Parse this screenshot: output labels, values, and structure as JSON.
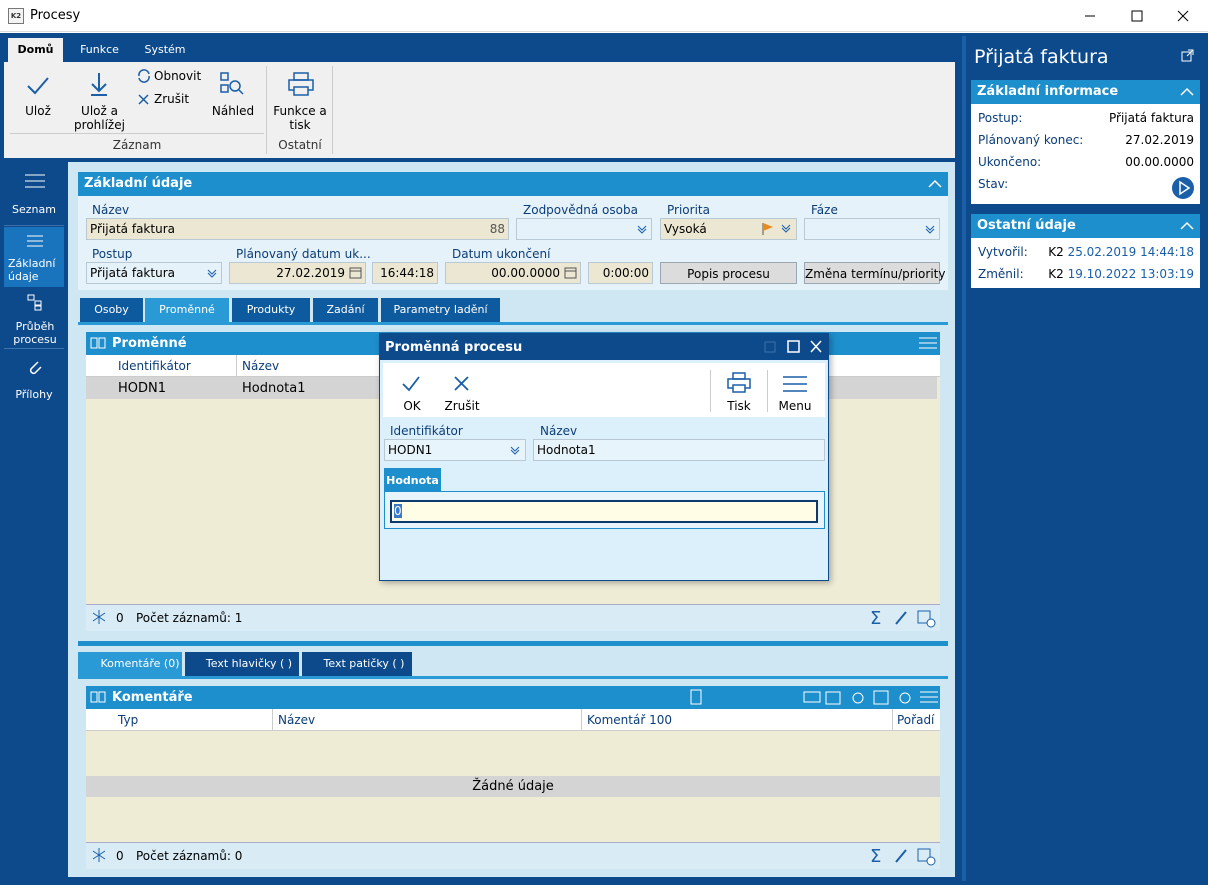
{
  "window": {
    "title": "Procesy",
    "icon": "K2"
  },
  "ribbon": {
    "tabs": [
      "Domů",
      "Funkce",
      "Systém"
    ],
    "save": "Ulož",
    "save_browse": "Ulož a prohlížej",
    "refresh": "Obnovit",
    "cancel": "Zrušit",
    "preview": "Náhled",
    "functions": "Funkce a tisk",
    "groups": [
      "Záznam",
      "Ostatní"
    ]
  },
  "sidebar": [
    "Seznam",
    "Základní údaje",
    "Průběh procesu",
    "Přílohy"
  ],
  "basic": {
    "title": "Základní údaje",
    "name_label": "Název",
    "name_value": "Přijatá faktura",
    "name_number": 88,
    "person_label": "Zodpovědná osoba",
    "priority_label": "Priorita",
    "priority_value": "Vysoká",
    "phase_label": "Fáze",
    "procedure_label": "Postup",
    "procedure_value": "Přijatá faktura",
    "planned_label": "Plánovaný datum uk...",
    "planned_date": "27.02.2019",
    "planned_time": "16:44:18",
    "end_label": "Datum ukončení",
    "end_date": "00.00.0000",
    "end_time": "0:00:00",
    "buttons": [
      "Popis procesu",
      "Změna termínu/priority"
    ]
  },
  "tabs": [
    "Osoby",
    "Proměnné",
    "Produkty",
    "Zadání",
    "Parametry ladění"
  ],
  "variables": {
    "title": "Proměnné",
    "columns": [
      "Identifikátor",
      "Název"
    ],
    "rows": [
      [
        "HODN1",
        "Hodnota1"
      ]
    ],
    "footer_count": 0,
    "footer_text": "Počet záznamů: 1"
  },
  "dialog": {
    "title": "Proměnná procesu",
    "buttons": [
      "OK",
      "Zrušit",
      "Tisk",
      "Menu"
    ],
    "identifier_label": "Identifikátor",
    "identifier_value": "HODN1",
    "name_label": "Název",
    "name_value": "Hodnota1",
    "tab": "Hodnota",
    "value": 0
  },
  "bottom_tabs": [
    "Komentáře (0)",
    "Text hlavičky ( )",
    "Text patičky ( )"
  ],
  "comments": {
    "title": "Komentáře",
    "columns": [
      "Typ",
      "Název",
      "Komentář 100",
      "Pořadí"
    ],
    "empty": "Žádné údaje",
    "footer_count": 0,
    "footer_text": "Počet záznamů: 0"
  },
  "right_panel": {
    "title": "Přijatá faktura",
    "section1": "Základní informace",
    "info": [
      [
        "Postup:",
        "Přijatá faktura"
      ],
      [
        "Plánovaný konec:",
        "27.02.2019"
      ],
      [
        "Ukončeno:",
        "00.00.0000"
      ],
      [
        "Stav:",
        ""
      ]
    ],
    "section2": "Ostatní údaje",
    "other": [
      [
        "Vytvořil:",
        "K2",
        "25.02.2019 14:44:18"
      ],
      [
        "Změnil:",
        "K2",
        "19.10.2022 13:03:19"
      ]
    ]
  }
}
